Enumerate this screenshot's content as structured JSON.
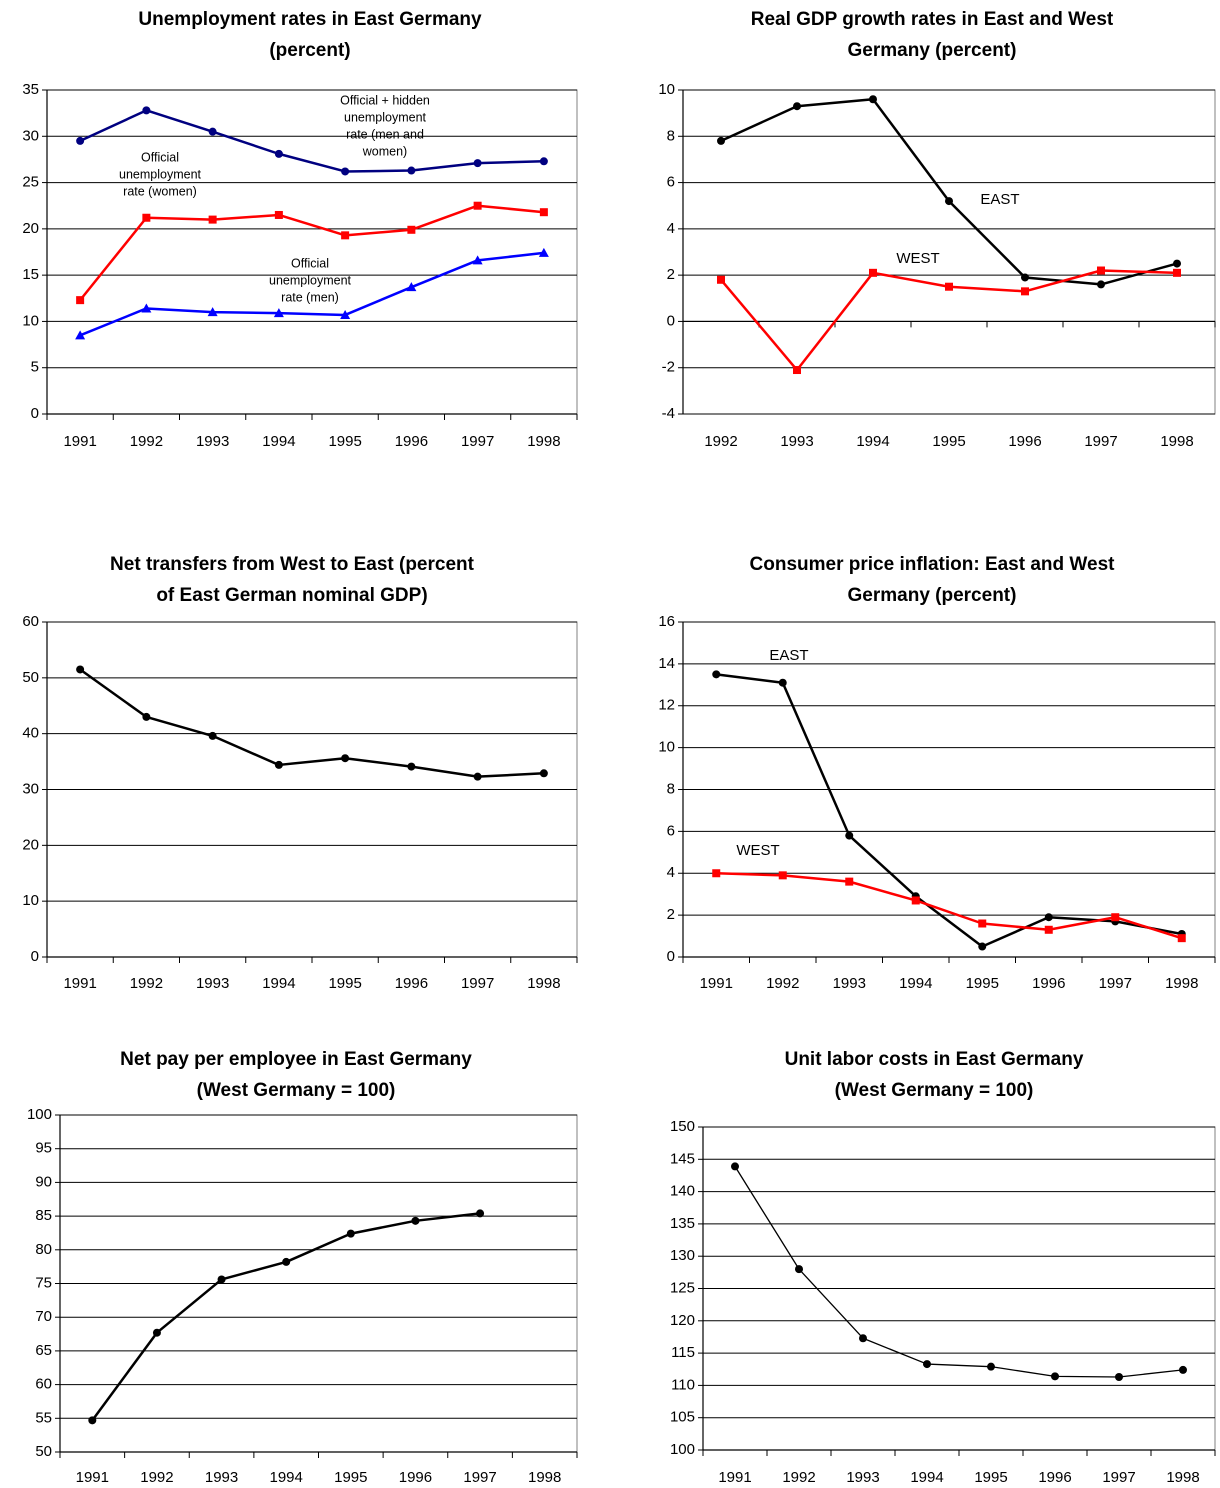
{
  "chart_data": [
    {
      "type": "line",
      "title": [
        "Unemployment rates in East Germany",
        "(percent)"
      ],
      "categories": [
        "1991",
        "1992",
        "1993",
        "1994",
        "1995",
        "1996",
        "1997",
        "1998"
      ],
      "series": [
        {
          "color": "#000080",
          "marker": "circle",
          "values": [
            29.5,
            32.8,
            30.5,
            28.1,
            26.2,
            26.3,
            27.1,
            27.3
          ]
        },
        {
          "color": "#ff0000",
          "marker": "square",
          "values": [
            12.3,
            21.2,
            21.0,
            21.5,
            19.3,
            19.9,
            22.5,
            21.8
          ]
        },
        {
          "color": "#0000ff",
          "marker": "triangle",
          "values": [
            8.5,
            11.4,
            11.0,
            10.9,
            10.7,
            13.7,
            16.6,
            17.4
          ]
        }
      ],
      "ylim": [
        0,
        35
      ],
      "yticks": [
        0,
        5,
        10,
        15,
        20,
        25,
        30,
        35
      ],
      "grid": true,
      "annotations": [
        [
          "Official + hidden",
          "unemployment",
          "rate (men and",
          "women)"
        ],
        [
          "Official",
          "unemployment",
          "rate  (women)"
        ],
        [
          "Official",
          "unemployment",
          "rate  (men)"
        ]
      ]
    },
    {
      "type": "line",
      "title": [
        "Real GDP growth rates in East and West",
        "Germany (percent)"
      ],
      "categories": [
        "1992",
        "1993",
        "1994",
        "1995",
        "1996",
        "1997",
        "1998"
      ],
      "series": [
        {
          "color": "#000000",
          "marker": "circle",
          "values": [
            7.8,
            9.3,
            9.6,
            5.2,
            1.9,
            1.6,
            2.5
          ]
        },
        {
          "color": "#ff0000",
          "marker": "square",
          "values": [
            1.8,
            -2.1,
            2.1,
            1.5,
            1.3,
            2.2,
            2.1
          ]
        }
      ],
      "ylim": [
        -4,
        10
      ],
      "yticks": [
        -4,
        -2,
        0,
        2,
        4,
        6,
        8,
        10
      ],
      "grid": true,
      "annotations": [
        [
          "EAST"
        ],
        [
          "WEST"
        ]
      ]
    },
    {
      "type": "line",
      "title": [
        "Net transfers from West to East (percent",
        "of East German nominal GDP)"
      ],
      "categories": [
        "1991",
        "1992",
        "1993",
        "1994",
        "1995",
        "1996",
        "1997",
        "1998"
      ],
      "series": [
        {
          "color": "#000000",
          "marker": "circle",
          "values": [
            51.5,
            43.0,
            39.6,
            34.4,
            35.6,
            34.1,
            32.3,
            32.9
          ]
        }
      ],
      "ylim": [
        0,
        60
      ],
      "yticks": [
        0,
        10,
        20,
        30,
        40,
        50,
        60
      ],
      "grid": true
    },
    {
      "type": "line",
      "title": [
        "Consumer price inflation: East and West",
        "Germany (percent)"
      ],
      "categories": [
        "1991",
        "1992",
        "1993",
        "1994",
        "1995",
        "1996",
        "1997",
        "1998"
      ],
      "series": [
        {
          "color": "#000000",
          "marker": "circle",
          "values": [
            13.5,
            13.1,
            5.8,
            2.9,
            0.5,
            1.9,
            1.7,
            1.1
          ]
        },
        {
          "color": "#ff0000",
          "marker": "square",
          "values": [
            4.0,
            3.9,
            3.6,
            2.7,
            1.6,
            1.3,
            1.9,
            0.9
          ]
        }
      ],
      "ylim": [
        0,
        16
      ],
      "yticks": [
        0,
        2,
        4,
        6,
        8,
        10,
        12,
        14,
        16
      ],
      "grid": true,
      "annotations": [
        [
          "EAST"
        ],
        [
          "WEST"
        ]
      ]
    },
    {
      "type": "line",
      "title": [
        "Net pay per employee in East Germany",
        "(West Germany = 100)"
      ],
      "categories": [
        "1991",
        "1992",
        "1993",
        "1994",
        "1995",
        "1996",
        "1997",
        "1998"
      ],
      "series": [
        {
          "color": "#000000",
          "marker": "circle",
          "values": [
            54.7,
            67.7,
            75.6,
            78.2,
            82.4,
            84.3,
            85.4,
            null
          ]
        }
      ],
      "ylim": [
        50,
        100
      ],
      "yticks": [
        50,
        55,
        60,
        65,
        70,
        75,
        80,
        85,
        90,
        95,
        100
      ],
      "grid": true
    },
    {
      "type": "line",
      "title": [
        "Unit labor costs in East Germany",
        "(West Germany = 100)"
      ],
      "categories": [
        "1991",
        "1992",
        "1993",
        "1994",
        "1995",
        "1996",
        "1997",
        "1998"
      ],
      "series": [
        {
          "color": "#000000",
          "marker": "circle",
          "values": [
            143.9,
            128.0,
            117.3,
            113.3,
            112.9,
            111.4,
            111.3,
            112.4
          ]
        }
      ],
      "ylim": [
        100,
        150
      ],
      "yticks": [
        100,
        105,
        110,
        115,
        120,
        125,
        130,
        135,
        140,
        145,
        150
      ],
      "grid": true
    }
  ]
}
